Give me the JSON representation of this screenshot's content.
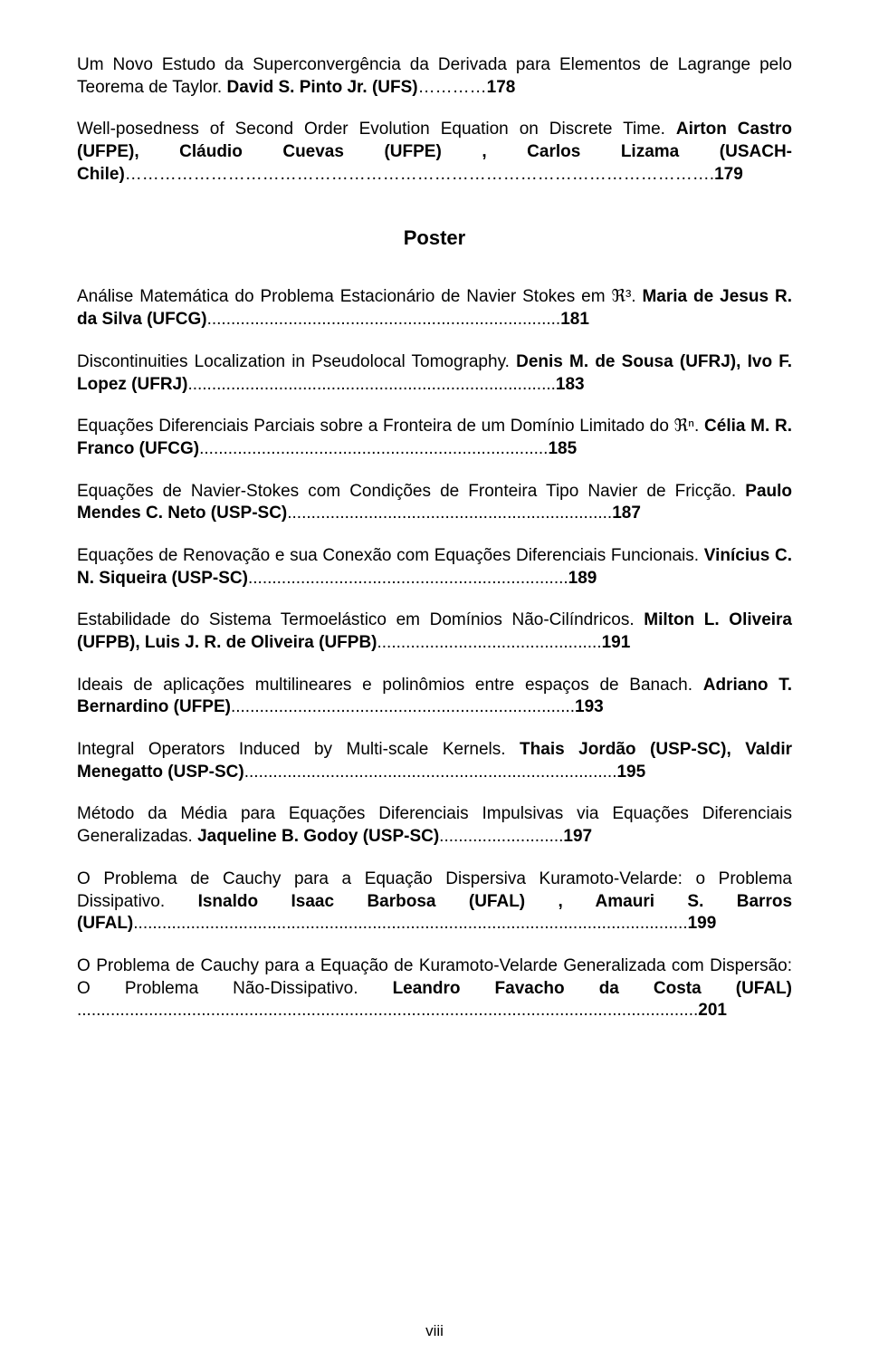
{
  "entries_top": [
    {
      "text_before": "Um Novo Estudo da Superconvergência da Derivada para Elementos de Lagrange pelo Teorema de Taylor. ",
      "bold": "David S. Pinto Jr. (UFS)",
      "dots": "…………",
      "page": "178"
    },
    {
      "text_before": "Well-posedness of Second Order Evolution Equation on Discrete Time. ",
      "bold": "Airton Castro (UFPE), Cláudio Cuevas (UFPE) , Carlos Lizama (USACH-Chile)",
      "dots": "………………………………………………………………………………………….",
      "page": "179"
    }
  ],
  "section_heading": "Poster",
  "entries_bottom": [
    {
      "html": "Análise Matemática do Problema Estacionário de Navier Stokes em ℜ³. <b>Maria de Jesus R. da Silva (UFCG)</b>..........................................................................<b>181</b>"
    },
    {
      "html": "Discontinuities Localization in Pseudolocal Tomography. <b>Denis M. de Sousa (UFRJ), Ivo F. Lopez (UFRJ)</b>.............................................................................<b>183</b>"
    },
    {
      "html": "Equações Diferenciais Parciais sobre a Fronteira de um Domínio Limitado do ℜⁿ. <b>Célia M. R. Franco (UFCG)</b>.........................................................................<b>185</b>"
    },
    {
      "html": "Equações de Navier-Stokes com Condições de Fronteira Tipo Navier de Fricção. <b>Paulo Mendes C. Neto (USP-SC)</b>....................................................................<b>187</b>"
    },
    {
      "html": "Equações de Renovação e sua Conexão com Equações Diferenciais Funcionais. <b>Vinícius C. N. Siqueira (USP-SC)</b>...................................................................<b>189</b>"
    },
    {
      "html": "Estabilidade do Sistema Termoelástico em Domínios Não-Cilíndricos. <b>Milton L. Oliveira (UFPB), Luis J. R. de Oliveira (UFPB)</b>...............................................<b>191</b>"
    },
    {
      "html": "Ideais de aplicações multilineares e polinômios entre espaços de Banach. <b>Adriano T. Bernardino (UFPE)</b>........................................................................<b>193</b>"
    },
    {
      "html": "Integral Operators Induced by Multi-scale Kernels. <b>Thais Jordão (USP-SC), Valdir Menegatto (USP-SC)</b>..............................................................................<b>195</b>"
    },
    {
      "html": "Método da Média para Equações Diferenciais Impulsivas via Equações Diferenciais Generalizadas. <b>Jaqueline B. Godoy (USP-SC)</b>..........................<b>197</b>"
    },
    {
      "html": "O Problema de Cauchy para a Equação Dispersiva Kuramoto-Velarde: o Problema Dissipativo. <b>Isnaldo Isaac Barbosa (UFAL) , Amauri S. Barros (UFAL)</b>....................................................................................................................<b>199</b>"
    },
    {
      "html": "O Problema de Cauchy para a Equação de Kuramoto-Velarde Generalizada com Dispersão: O Problema Não-Dissipativo. <b>Leandro Favacho da Costa (UFAL)</b> ..................................................................................................................................<b>201</b>"
    }
  ],
  "page_number": "viii"
}
